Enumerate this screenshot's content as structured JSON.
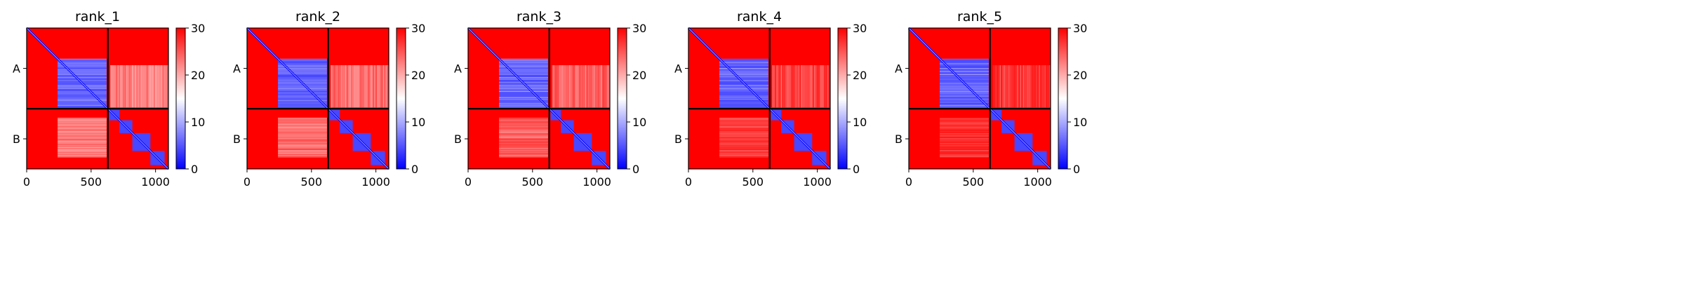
{
  "chart_data": [
    {
      "type": "heatmap",
      "title": "rank_1",
      "chains": [
        "A",
        "B"
      ],
      "chain_boundary": 630,
      "x_ticks": [
        0,
        500,
        1000
      ],
      "x_range": [
        0,
        1100
      ],
      "colorbar": {
        "min": 0,
        "max": 30,
        "ticks": [
          0,
          10,
          20,
          30
        ],
        "colormap": "bwr"
      },
      "interchain_low_block": {
        "A_range": [
          240,
          620
        ],
        "B_range": [
          630,
          1100
        ],
        "level": 22
      }
    },
    {
      "type": "heatmap",
      "title": "rank_2",
      "chains": [
        "A",
        "B"
      ],
      "chain_boundary": 630,
      "x_ticks": [
        0,
        500,
        1000
      ],
      "x_range": [
        0,
        1100
      ],
      "colorbar": {
        "min": 0,
        "max": 30,
        "ticks": [
          0,
          10,
          20,
          30
        ],
        "colormap": "bwr"
      },
      "interchain_low_block": {
        "A_range": [
          240,
          620
        ],
        "B_range": [
          630,
          1100
        ],
        "level": 23
      }
    },
    {
      "type": "heatmap",
      "title": "rank_3",
      "chains": [
        "A",
        "B"
      ],
      "chain_boundary": 630,
      "x_ticks": [
        0,
        500,
        1000
      ],
      "x_range": [
        0,
        1100
      ],
      "colorbar": {
        "min": 0,
        "max": 30,
        "ticks": [
          0,
          10,
          20,
          30
        ],
        "colormap": "bwr"
      },
      "interchain_low_block": {
        "A_range": [
          240,
          620
        ],
        "B_range": [
          630,
          1100
        ],
        "level": 24
      }
    },
    {
      "type": "heatmap",
      "title": "rank_4",
      "chains": [
        "A",
        "B"
      ],
      "chain_boundary": 630,
      "x_ticks": [
        0,
        500,
        1000
      ],
      "x_range": [
        0,
        1100
      ],
      "colorbar": {
        "min": 0,
        "max": 30,
        "ticks": [
          0,
          10,
          20,
          30
        ],
        "colormap": "bwr"
      },
      "interchain_low_block": {
        "A_range": [
          240,
          620
        ],
        "B_range": [
          630,
          1100
        ],
        "level": 26
      }
    },
    {
      "type": "heatmap",
      "title": "rank_5",
      "chains": [
        "A",
        "B"
      ],
      "chain_boundary": 630,
      "x_ticks": [
        0,
        500,
        1000
      ],
      "x_range": [
        0,
        1100
      ],
      "colorbar": {
        "min": 0,
        "max": 30,
        "ticks": [
          0,
          10,
          20,
          30
        ],
        "colormap": "bwr"
      },
      "interchain_low_block": {
        "A_range": [
          240,
          620
        ],
        "B_range": [
          630,
          1100
        ],
        "level": 27
      }
    }
  ]
}
